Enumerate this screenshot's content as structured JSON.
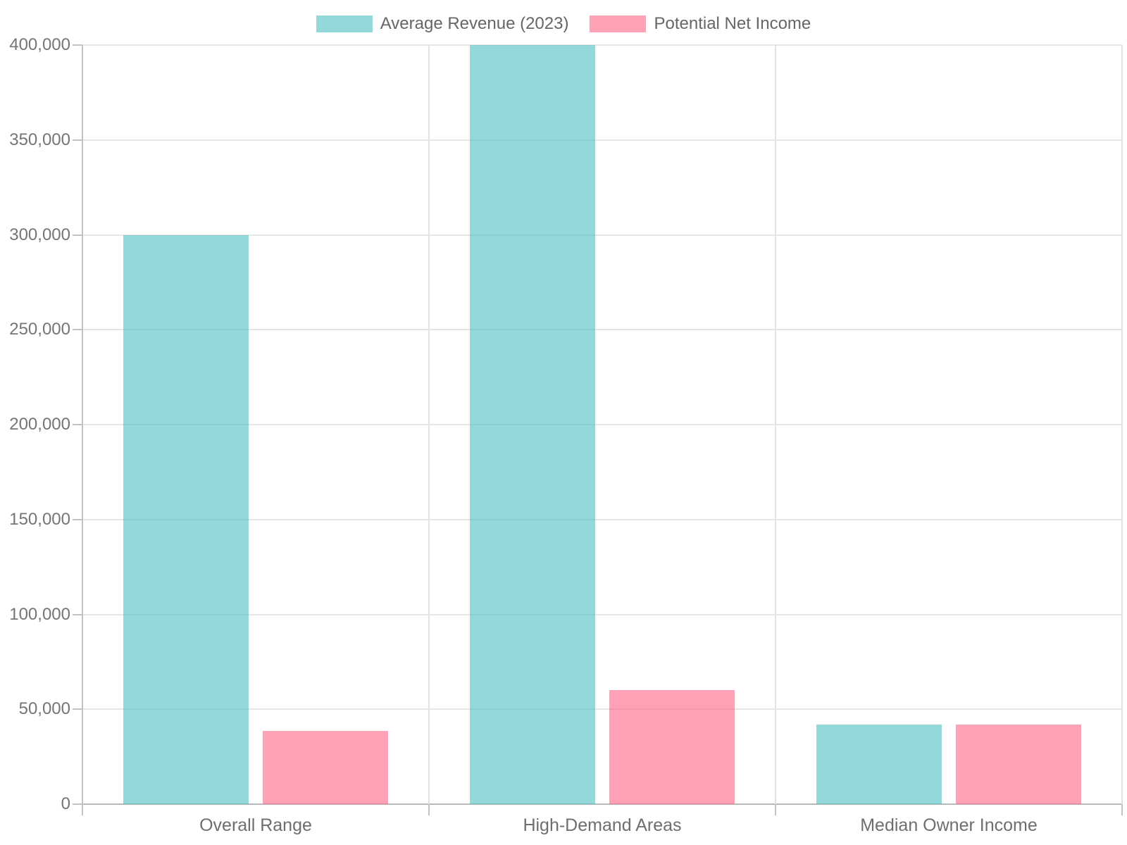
{
  "chart_data": {
    "type": "bar",
    "categories": [
      "Overall Range",
      "High-Demand Areas",
      "Median Owner Income"
    ],
    "series": [
      {
        "name": "Average Revenue (2023)",
        "color": "rgba(75,192,192,0.6)",
        "values": [
          300000,
          400000,
          42000
        ]
      },
      {
        "name": "Potential Net Income",
        "color": "rgba(255,99,132,0.6)",
        "values": [
          38500,
          60000,
          42000
        ]
      }
    ],
    "ylim": [
      0,
      400000
    ],
    "ytick_step": 50000,
    "y_tick_labels": [
      "0",
      "50,000",
      "100,000",
      "150,000",
      "200,000",
      "250,000",
      "300,000",
      "350,000",
      "400,000"
    ],
    "grid": true,
    "legend_position": "top-center"
  },
  "style": {
    "grid_color": "#e6e6e6",
    "boundary_grid_color": "#e2e2e2",
    "axis_color": "#c2c2c2",
    "baseline_color": "#b9b9b9",
    "tick_color": "#c2c2c2",
    "label_color": "#757575"
  }
}
